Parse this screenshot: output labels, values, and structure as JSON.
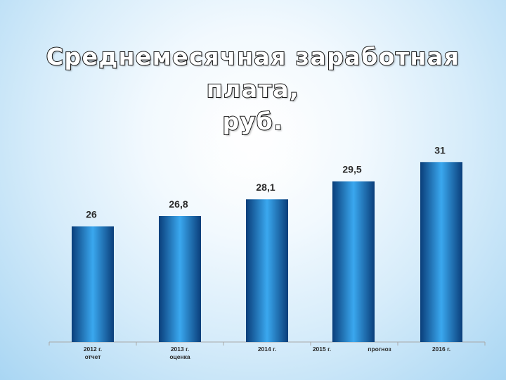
{
  "title_lines": [
    "Среднемесячная заработная плата,",
    "руб."
  ],
  "colors": {
    "bar_dark": "#0a3e7a",
    "bar_light": "#3aa8ef",
    "axis": "#a8a8a8",
    "label": "#2a2a2a"
  },
  "chart_data": {
    "type": "bar",
    "title": "Среднемесячная заработная плата, руб.",
    "categories": [
      "2012 г. отчет",
      "2013 г. оценка",
      "2014 г.",
      "2015 г.",
      "2016 г."
    ],
    "values": [
      26,
      26.8,
      28.1,
      29.5,
      31
    ],
    "value_labels": [
      "26",
      "26,8",
      "28,1",
      "29,5",
      "31"
    ],
    "xlabel": "",
    "ylabel": "",
    "ylim": [
      17,
      32
    ],
    "grid": false,
    "legend": "none",
    "x_tick_labels": [
      {
        "lines": [
          "2012 г.",
          "отчет"
        ]
      },
      {
        "lines": [
          "2013 г.",
          "оценка"
        ]
      },
      {
        "lines": [
          "2014 г."
        ]
      },
      {
        "lines": [
          "2015 г."
        ]
      },
      {
        "lines": [
          "прогноз"
        ]
      },
      {
        "lines": [
          "2016 г."
        ]
      }
    ]
  }
}
